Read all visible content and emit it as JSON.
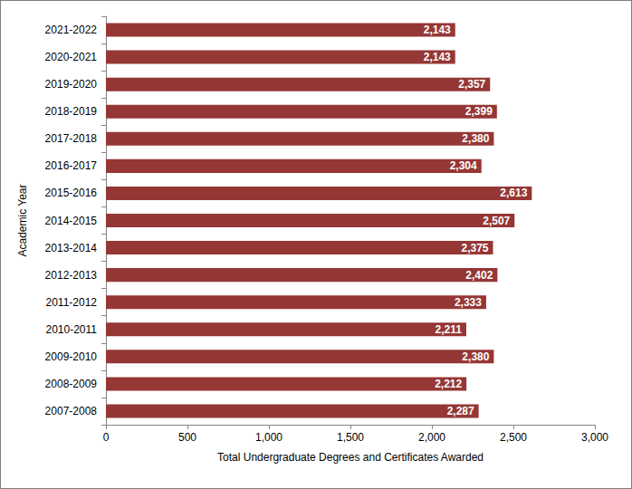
{
  "chart_data": {
    "type": "bar",
    "orientation": "horizontal",
    "x_label": "Total Undergraduate Degrees and Certificates Awarded",
    "y_label": "Academic Year",
    "categories": [
      "2007-2008",
      "2008-2009",
      "2009-2010",
      "2010-2011",
      "2011-2012",
      "2012-2013",
      "2013-2014",
      "2014-2015",
      "2015-2016",
      "2016-2017",
      "2017-2018",
      "2018-2019",
      "2019-2020",
      "2020-2021",
      "2021-2022"
    ],
    "values": [
      2287,
      2212,
      2380,
      2211,
      2333,
      2402,
      2375,
      2507,
      2613,
      2304,
      2380,
      2399,
      2357,
      2143,
      2143
    ],
    "value_labels": [
      "2,287",
      "2,212",
      "2,380",
      "2,211",
      "2,333",
      "2,402",
      "2,375",
      "2,507",
      "2,613",
      "2,304",
      "2,380",
      "2,399",
      "2,357",
      "2,143",
      "2,143"
    ],
    "color": "#953735",
    "data_labels": true,
    "grid": false,
    "xlim": [
      0,
      3000
    ],
    "xticks": [
      0,
      500,
      {
        "value": 1000,
        "label": "1,000"
      },
      {
        "value": 1500,
        "label": "1,500"
      },
      {
        "value": 2000,
        "label": "2,000"
      },
      {
        "value": 2500,
        "label": "2,500"
      },
      {
        "value": 3000,
        "label": "3,000"
      }
    ]
  }
}
